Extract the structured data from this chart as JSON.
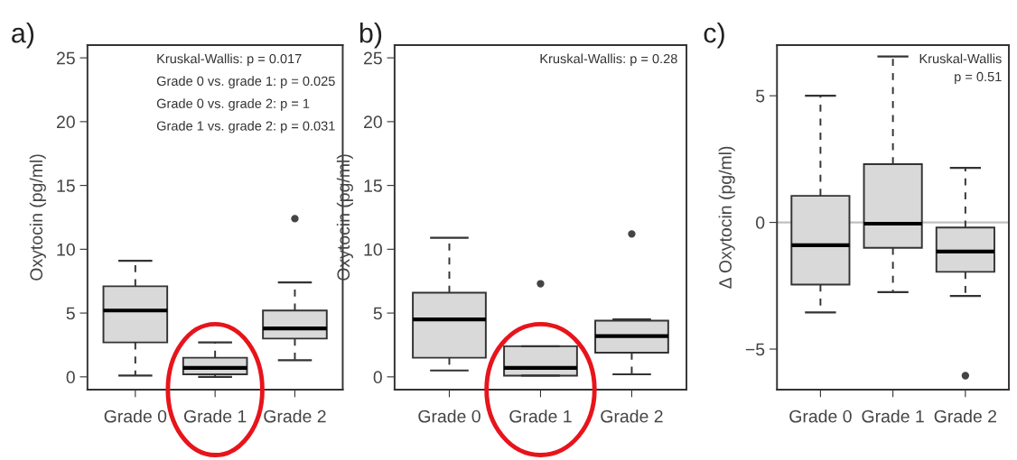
{
  "chart_data": [
    {
      "type": "box",
      "title": "a)",
      "ylabel": "Oxytocin (pg/ml)",
      "categories": [
        "Grade 0",
        "Grade 1",
        "Grade 2"
      ],
      "color": "#d9d9d9",
      "boxes": [
        {
          "low": 0.1,
          "q1": 2.7,
          "median": 5.2,
          "q3": 7.1,
          "high": 9.1
        },
        {
          "low": 0.0,
          "q1": 0.2,
          "median": 0.7,
          "q3": 1.5,
          "high": 2.7
        },
        {
          "low": 1.3,
          "q1": 3.0,
          "median": 3.8,
          "q3": 5.2,
          "high": 7.4,
          "outliers": [
            12.4
          ]
        }
      ],
      "ylim": [
        -1,
        26
      ],
      "yticks": [
        0,
        5,
        10,
        15,
        20,
        25
      ],
      "grid": false,
      "annotations": [
        "Kruskal-Wallis: p = 0.017",
        "Grade 0 vs. grade 1: p = 0.025",
        "Grade 0 vs. grade 2: p = 1",
        "Grade 1 vs. grade 2: p = 0.031"
      ]
    },
    {
      "type": "box",
      "title": "b)",
      "ylabel": "Oxytocin (pg/ml)",
      "categories": [
        "Grade 0",
        "Grade 1",
        "Grade 2"
      ],
      "color": "#d9d9d9",
      "boxes": [
        {
          "low": 0.5,
          "q1": 1.5,
          "median": 4.5,
          "q3": 6.6,
          "high": 10.9
        },
        {
          "low": 0.1,
          "q1": 0.1,
          "median": 0.7,
          "q3": 2.4,
          "high": 2.4,
          "outliers": [
            7.3
          ]
        },
        {
          "low": 0.2,
          "q1": 1.9,
          "median": 3.2,
          "q3": 4.4,
          "high": 4.5,
          "outliers": [
            11.2
          ]
        }
      ],
      "ylim": [
        -1,
        26
      ],
      "yticks": [
        0,
        5,
        10,
        15,
        20,
        25
      ],
      "grid": false,
      "annotations": [
        "Kruskal-Wallis: p = 0.28"
      ]
    },
    {
      "type": "box",
      "title": "c)",
      "ylabel": "Δ Oxytocin (pg/ml)",
      "categories": [
        "Grade 0",
        "Grade 1",
        "Grade 2"
      ],
      "color": "#d9d9d9",
      "boxes": [
        {
          "low": -3.55,
          "q1": -2.45,
          "median": -0.9,
          "q3": 1.05,
          "high": 5.0
        },
        {
          "low": -2.75,
          "q1": -1.0,
          "median": -0.05,
          "q3": 2.3,
          "high": 6.55
        },
        {
          "low": -2.9,
          "q1": -1.95,
          "median": -1.15,
          "q3": -0.2,
          "high": 2.15,
          "outliers": [
            -6.05
          ]
        }
      ],
      "ylim": [
        -6.6,
        7.0
      ],
      "yticks": [
        {
          "value": -5,
          "label": "−5"
        },
        0,
        5
      ],
      "grid": false,
      "ref_lines": [
        {
          "axis": "y",
          "value": 0,
          "color": "#c0c0c0"
        }
      ],
      "annotations": [
        "Kruskal-Wallis\np = 0.51"
      ]
    }
  ]
}
